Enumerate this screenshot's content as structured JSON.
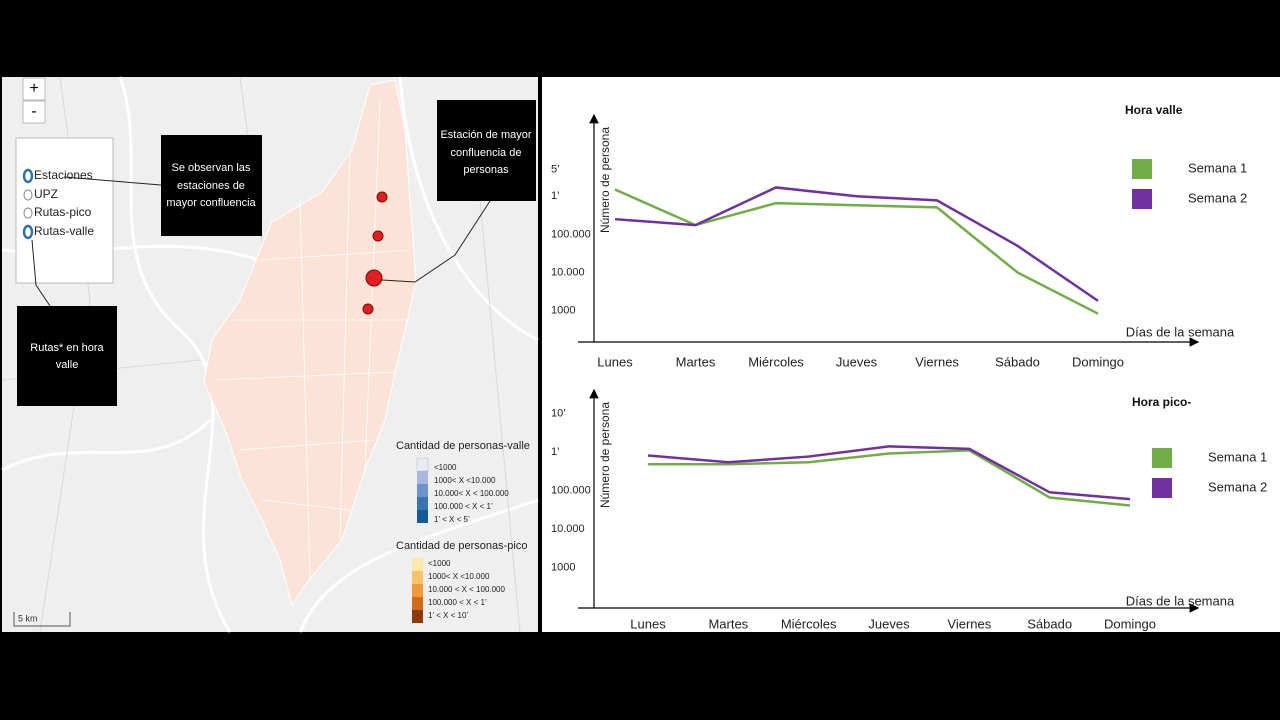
{
  "map": {
    "zoom_in": "+",
    "zoom_out": "-",
    "layers": [
      "Estaciones",
      "UPZ",
      "Rutas-pico",
      "Rutas-valle"
    ],
    "callouts": [
      [
        "Se observan las",
        "estaciones de",
        "mayor confluencia"
      ],
      [
        "Estación de mayor",
        "confluencia de",
        "personas"
      ],
      [
        "Rutas* en hora",
        "valle"
      ]
    ],
    "legend_valle": {
      "title": "Cantidad de personas-valle",
      "items": [
        "<1000",
        "1000< X <10.000",
        "10.000< X < 100.000",
        "100.000 < X < 1’",
        "1’ < X < 5’"
      ]
    },
    "legend_pico": {
      "title": "Cantidad de personas-pico",
      "items": [
        "<1000",
        "1000< X <10.000",
        "10.000 < X < 100.000",
        "100.000 < X < 1’",
        "1’ < X < 10’"
      ]
    },
    "scale": "5 km"
  },
  "chart_data": [
    {
      "type": "line",
      "title": "Hora valle",
      "y_label": "Número de persona",
      "x_label": "Días de la semana",
      "log_scale": true,
      "categories": [
        "Lunes",
        "Martes",
        "Miércoles",
        "Jueves",
        "Viernes",
        "Sábado",
        "Domingo"
      ],
      "series": [
        {
          "name": "Semana 1",
          "color": "#70ad47",
          "values": [
            1500000,
            175000,
            660000,
            580000,
            510000,
            10000,
            830
          ]
        },
        {
          "name": "Semana 2",
          "color": "#7030a0",
          "values": [
            250000,
            175000,
            1700000,
            1000000,
            780000,
            50000,
            1800
          ]
        }
      ],
      "ylim": [
        150,
        100000000
      ],
      "yticks": [
        1000,
        {
          "value": 10000,
          "label": "10.000"
        },
        {
          "value": 100000,
          "label": "100.000"
        },
        {
          "value": 1000000,
          "label": "1’"
        },
        {
          "value": 5000000,
          "label": "5’"
        }
      ]
    },
    {
      "type": "line",
      "title": "Hora pico-",
      "y_label": "Número de persona",
      "x_label": "Días de la semana",
      "log_scale": true,
      "categories": [
        "Lunes",
        "Martes",
        "Miércoles",
        "Jueves",
        "Viernes",
        "Sábado",
        "Domingo"
      ],
      "series": [
        {
          "name": "Semana 1",
          "color": "#70ad47",
          "values": [
            480000,
            480000,
            540000,
            910000,
            1100000,
            66000,
            41000
          ]
        },
        {
          "name": "Semana 2",
          "color": "#7030a0",
          "values": [
            810000,
            540000,
            760000,
            1400000,
            1200000,
            90000,
            60000
          ]
        }
      ],
      "ylim": [
        90,
        30000000
      ],
      "yticks": [
        1000,
        {
          "value": 10000,
          "label": "10.000"
        },
        {
          "value": 100000,
          "label": "100.000"
        },
        {
          "value": 1000000,
          "label": "1’"
        },
        {
          "value": 10000000,
          "label": "10’"
        }
      ]
    }
  ]
}
